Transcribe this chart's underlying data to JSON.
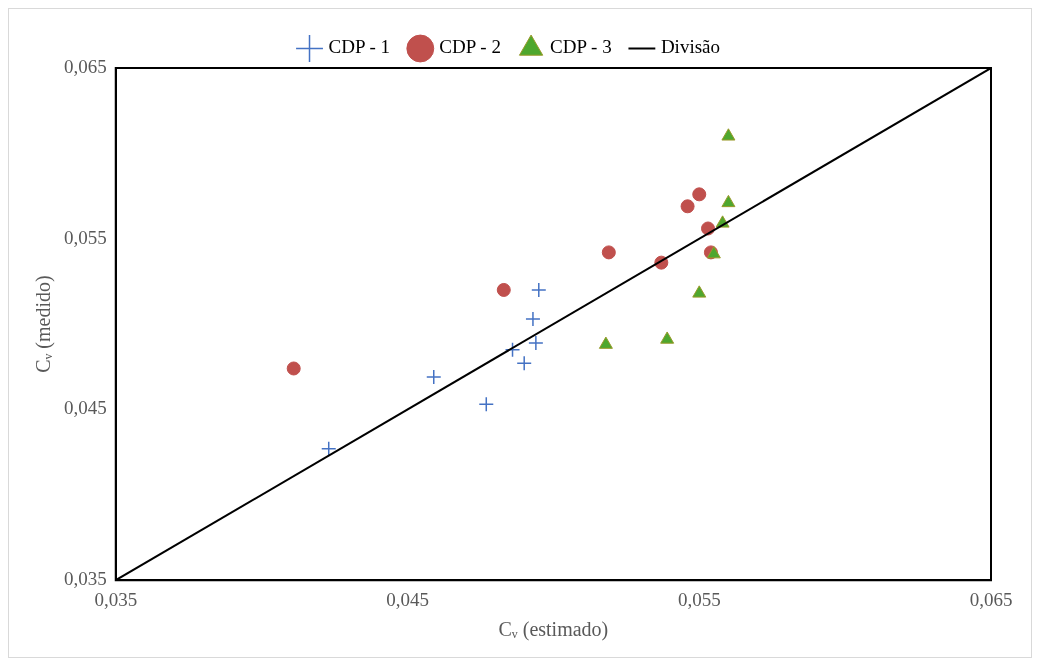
{
  "chart_data": {
    "type": "scatter",
    "xlabel": "Cᵥ (estimado)",
    "ylabel": "Cᵥ (medido)",
    "xlim": [
      0.035,
      0.065
    ],
    "ylim": [
      0.035,
      0.065
    ],
    "xticks": [
      {
        "value": 0.035,
        "label": "0,035"
      },
      {
        "value": 0.045,
        "label": "0,045"
      },
      {
        "value": 0.055,
        "label": "0,055"
      },
      {
        "value": 0.065,
        "label": "0,065"
      }
    ],
    "yticks": [
      {
        "value": 0.035,
        "label": "0,035"
      },
      {
        "value": 0.045,
        "label": "0,045"
      },
      {
        "value": 0.055,
        "label": "0,055"
      },
      {
        "value": 0.065,
        "label": "0,065"
      }
    ],
    "grid": false,
    "legend": "top",
    "series": [
      {
        "name": "CDP - 1",
        "color": "#4472c4",
        "marker": "cross",
        "x": [
          0.0423,
          0.0459,
          0.0477,
          0.0486,
          0.049,
          0.0494,
          0.0493,
          0.0495
        ],
        "values": [
          0.0427,
          0.0469,
          0.0453,
          0.0485,
          0.0477,
          0.0489,
          0.0503,
          0.052
        ]
      },
      {
        "name": "CDP - 2",
        "color": "#c0504d",
        "marker": "circle",
        "x": [
          0.0411,
          0.0483,
          0.0519,
          0.0537,
          0.0546,
          0.055,
          0.0553,
          0.0554
        ],
        "values": [
          0.0474,
          0.052,
          0.0542,
          0.0536,
          0.0569,
          0.0576,
          0.0556,
          0.0542
        ]
      },
      {
        "name": "CDP - 3",
        "color": "#4ea72e",
        "marker": "triangle",
        "x": [
          0.0518,
          0.0539,
          0.055,
          0.0555,
          0.0558,
          0.056,
          0.056
        ],
        "values": [
          0.0488,
          0.0491,
          0.0518,
          0.0541,
          0.0559,
          0.0571,
          0.061
        ]
      },
      {
        "name": "Divisão",
        "color": "#000000",
        "type": "line",
        "marker": "none",
        "x": [
          0.035,
          0.065
        ],
        "values": [
          0.035,
          0.065
        ]
      }
    ]
  }
}
